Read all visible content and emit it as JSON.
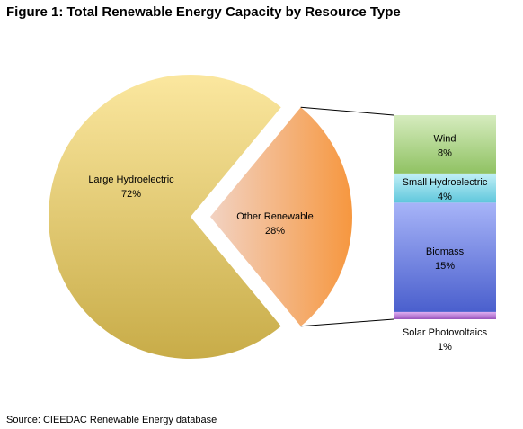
{
  "title": "Figure 1: Total Renewable Energy Capacity by Resource Type",
  "source": "Source: CIEEDAC Renewable Energy database",
  "chart_data": {
    "type": "bar-of-pie",
    "pie": {
      "slices": [
        {
          "label": "Large Hydroelectric",
          "value": 72,
          "display": "72%",
          "color": "#d8c46a"
        },
        {
          "label": "Other Renewable",
          "value": 28,
          "display": "28%",
          "color": "#f4a055",
          "exploded": true
        }
      ]
    },
    "bar": {
      "total": 28,
      "segments_bottom_to_top": [
        {
          "label": "Solar Photovoltaics",
          "value": 1,
          "display": "1%",
          "color": "#b77ad0",
          "label_position": "below"
        },
        {
          "label": "Biomass",
          "value": 15,
          "display": "15%",
          "color": "#7d8ee8"
        },
        {
          "label": "Small Hydroelectric",
          "value": 4,
          "display": "4%",
          "color": "#8fdaea"
        },
        {
          "label": "Wind",
          "value": 8,
          "display": "8%",
          "color": "#b5dc92"
        }
      ]
    },
    "legend": "none"
  }
}
